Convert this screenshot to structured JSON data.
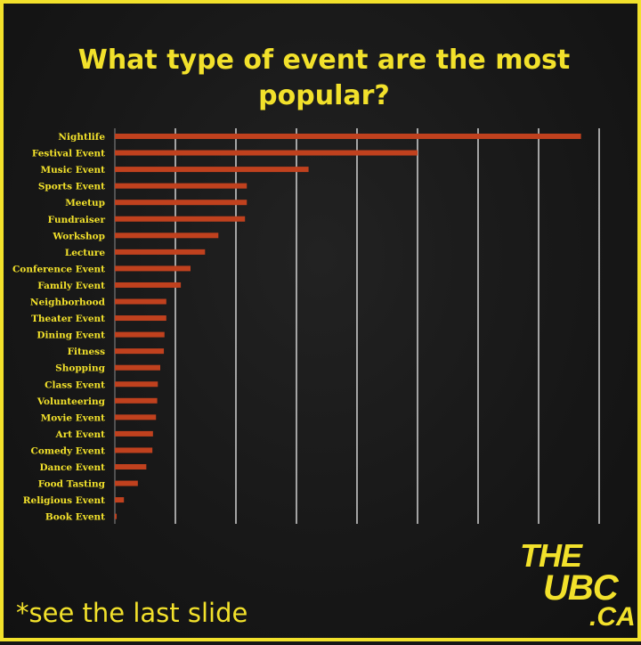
{
  "chart_data": {
    "type": "bar",
    "orientation": "horizontal",
    "title": "What type of event are the most popular?",
    "categories": [
      "Nightlife",
      "Festival Event",
      "Music Event",
      "Sports Event",
      "Meetup",
      "Fundraiser",
      "Workshop",
      "Lecture",
      "Conference Event",
      "Family Event",
      "Neighborhood",
      "Theater Event",
      "Dining Event",
      "Fitness",
      "Shopping",
      "Class Event",
      "Volunteering",
      "Movie Event",
      "Art Event",
      "Comedy Event",
      "Dance Event",
      "Food Tasting",
      "Religious Event",
      "Book Event"
    ],
    "values": [
      7.7,
      5.0,
      3.2,
      2.18,
      2.18,
      2.15,
      1.71,
      1.49,
      1.25,
      1.09,
      0.85,
      0.85,
      0.82,
      0.81,
      0.75,
      0.71,
      0.7,
      0.68,
      0.63,
      0.62,
      0.52,
      0.38,
      0.15,
      0.03
    ],
    "xlim": [
      0,
      8
    ],
    "x_gridlines": [
      1,
      2,
      3,
      4,
      5,
      6,
      7,
      8
    ],
    "grid": true,
    "colors": {
      "bar": "#c0411e",
      "text": "#f2e12b",
      "gridline": "#ffffff",
      "background": "#161616"
    }
  },
  "footnote": "*see the last slide",
  "logo": {
    "line1": "THE",
    "line2": "UBC",
    "line3": ".CA"
  }
}
